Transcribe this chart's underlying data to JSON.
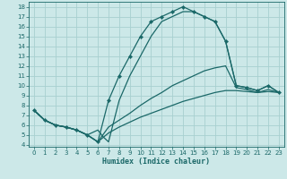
{
  "xlabel": "Humidex (Indice chaleur)",
  "bg_color": "#cce8e8",
  "grid_color": "#a8d0d0",
  "line_color": "#1a6868",
  "xlim": [
    -0.5,
    23.5
  ],
  "ylim": [
    3.8,
    18.5
  ],
  "yticks": [
    4,
    5,
    6,
    7,
    8,
    9,
    10,
    11,
    12,
    13,
    14,
    15,
    16,
    17,
    18
  ],
  "xticks": [
    0,
    1,
    2,
    3,
    4,
    5,
    6,
    7,
    8,
    9,
    10,
    11,
    12,
    13,
    14,
    15,
    16,
    17,
    18,
    19,
    20,
    21,
    22,
    23
  ],
  "series": [
    {
      "x": [
        0,
        1,
        2,
        3,
        4,
        5,
        6,
        7,
        8,
        9,
        10,
        11,
        12,
        13,
        14,
        15,
        16,
        17,
        18,
        19,
        20,
        21,
        22,
        23
      ],
      "y": [
        7.5,
        6.5,
        6.0,
        5.8,
        5.5,
        5.0,
        4.3,
        8.5,
        11.0,
        13.0,
        15.0,
        16.5,
        17.0,
        17.5,
        18.0,
        17.5,
        17.0,
        16.5,
        14.5,
        10.0,
        9.8,
        9.5,
        10.0,
        9.3
      ],
      "marker": "D",
      "markersize": 2.2,
      "linewidth": 0.9
    },
    {
      "x": [
        0,
        1,
        2,
        3,
        4,
        5,
        6,
        7,
        8,
        9,
        10,
        11,
        12,
        13,
        14,
        15,
        16,
        17,
        18,
        19,
        20,
        21,
        22,
        23
      ],
      "y": [
        7.5,
        6.5,
        6.0,
        5.8,
        5.5,
        5.0,
        4.3,
        5.2,
        5.8,
        6.3,
        6.8,
        7.2,
        7.6,
        8.0,
        8.4,
        8.7,
        9.0,
        9.3,
        9.5,
        9.5,
        9.4,
        9.3,
        9.4,
        9.3
      ],
      "marker": null,
      "markersize": 0,
      "linewidth": 0.9
    },
    {
      "x": [
        0,
        1,
        2,
        3,
        4,
        5,
        6,
        7,
        8,
        9,
        10,
        11,
        12,
        13,
        14,
        15,
        16,
        17,
        18,
        19,
        20,
        21,
        22,
        23
      ],
      "y": [
        7.5,
        6.5,
        6.0,
        5.8,
        5.5,
        5.0,
        4.3,
        5.8,
        6.5,
        7.2,
        8.0,
        8.7,
        9.3,
        10.0,
        10.5,
        11.0,
        11.5,
        11.8,
        12.0,
        9.8,
        9.6,
        9.3,
        9.6,
        9.3
      ],
      "marker": null,
      "markersize": 0,
      "linewidth": 0.9
    },
    {
      "x": [
        0,
        1,
        2,
        3,
        4,
        5,
        6,
        6.5,
        7,
        8,
        9,
        10,
        11,
        12,
        13,
        14,
        15,
        16,
        17,
        18,
        19,
        20,
        21,
        22,
        23
      ],
      "y": [
        7.5,
        6.5,
        6.0,
        5.8,
        5.5,
        5.0,
        5.5,
        4.8,
        4.3,
        8.5,
        11.0,
        13.0,
        15.0,
        16.5,
        17.0,
        17.5,
        17.5,
        17.0,
        16.5,
        14.5,
        10.0,
        9.8,
        9.5,
        10.0,
        9.3
      ],
      "marker": null,
      "markersize": 0,
      "linewidth": 0.9
    }
  ]
}
